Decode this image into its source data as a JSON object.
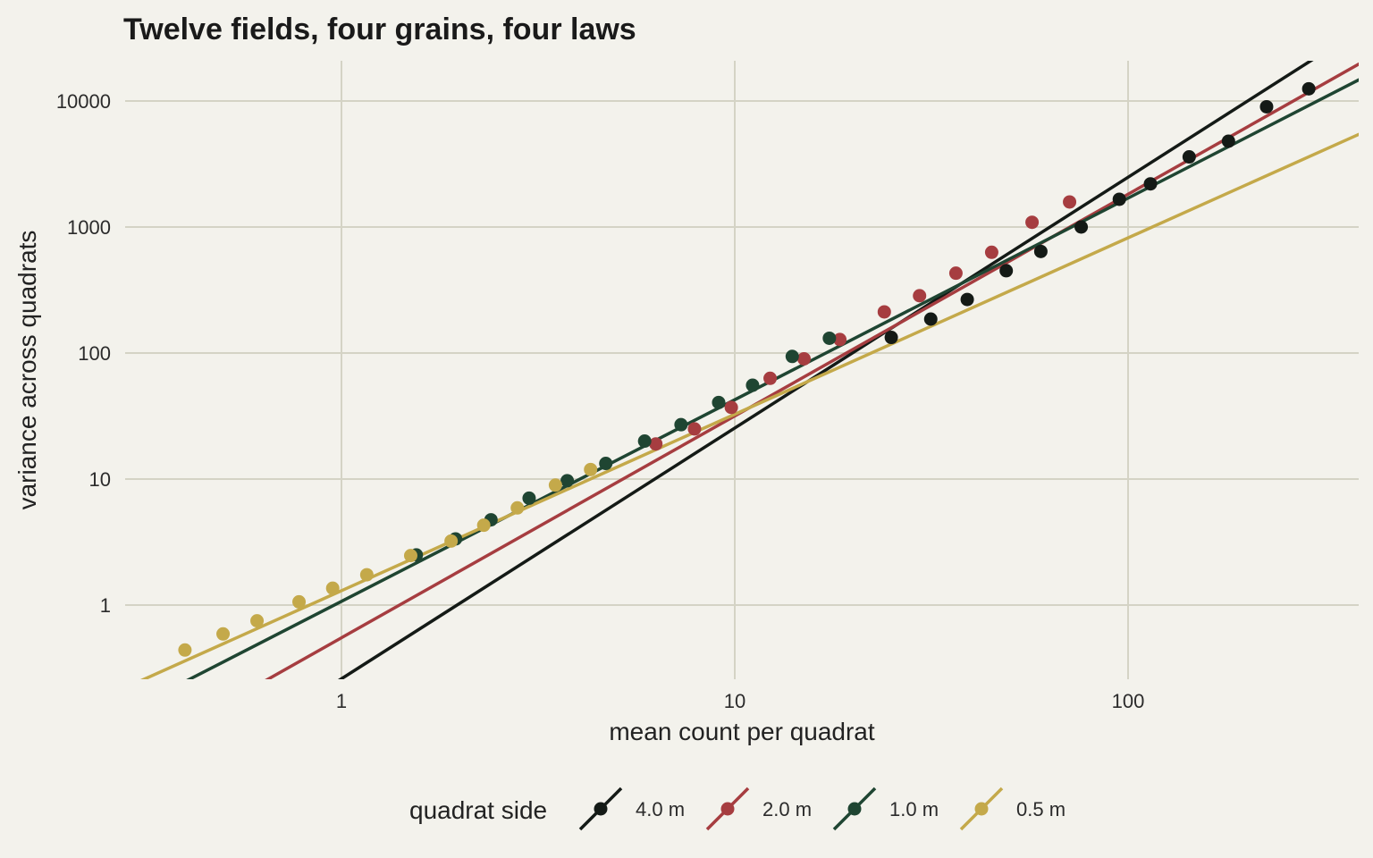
{
  "chart_data": {
    "type": "scatter",
    "title": "Twelve fields, four grains, four laws",
    "xlabel": "mean count per quadrat",
    "ylabel": "variance across quadrats",
    "x_scale": "log",
    "y_scale": "log",
    "xlim": [
      0.3,
      360
    ],
    "ylim": [
      0.26,
      20000
    ],
    "x_ticks": [
      1,
      10,
      100
    ],
    "x_tick_labels": [
      "1",
      "10",
      "100"
    ],
    "y_ticks": [
      1,
      10,
      100,
      1000,
      10000
    ],
    "y_tick_labels": [
      "1",
      "10",
      "100",
      "1000",
      "10000"
    ],
    "grid": true,
    "legend": {
      "title": "quadrat side",
      "position": "bottom",
      "entries": [
        "4.0 m",
        "2.0 m",
        "1.0 m",
        "0.5 m"
      ]
    },
    "series": [
      {
        "name": "4.0 m",
        "color": "#141a16",
        "fit": {
          "a": 0.26,
          "b": 1.99
        },
        "x": [
          25,
          31.5,
          39,
          49,
          60,
          76,
          95,
          114,
          143,
          180,
          225,
          288
        ],
        "y": [
          133,
          186,
          266,
          450,
          640,
          1000,
          1660,
          2200,
          3600,
          4800,
          9000,
          12500
        ]
      },
      {
        "name": "2.0 m",
        "color": "#a63d40",
        "fit": {
          "a": 0.55,
          "b": 1.76
        },
        "x": [
          6.3,
          7.9,
          9.8,
          12.3,
          15.0,
          18.5,
          24.0,
          29.5,
          36.5,
          45.0,
          57.0,
          71.0
        ],
        "y": [
          19,
          25,
          37,
          63,
          90,
          128,
          212,
          285,
          430,
          630,
          1090,
          1580
        ]
      },
      {
        "name": "1.0 m",
        "color": "#1f4532",
        "fit": {
          "a": 1.07,
          "b": 1.6
        },
        "x": [
          1.55,
          1.95,
          2.4,
          3.0,
          3.75,
          4.7,
          5.9,
          7.3,
          9.1,
          11.1,
          14.0,
          17.4
        ],
        "y": [
          2.5,
          3.35,
          4.75,
          7.05,
          9.7,
          13.3,
          20,
          27,
          40.5,
          55.5,
          94,
          131
        ]
      },
      {
        "name": "0.5 m",
        "color": "#c4a94a",
        "fit": {
          "a": 1.3,
          "b": 1.4
        },
        "x": [
          0.4,
          0.5,
          0.61,
          0.78,
          0.95,
          1.16,
          1.5,
          1.9,
          2.3,
          2.8,
          3.5,
          4.3
        ],
        "y": [
          0.44,
          0.59,
          0.75,
          1.06,
          1.36,
          1.74,
          2.47,
          3.22,
          4.3,
          5.9,
          8.95,
          11.9
        ]
      }
    ]
  }
}
